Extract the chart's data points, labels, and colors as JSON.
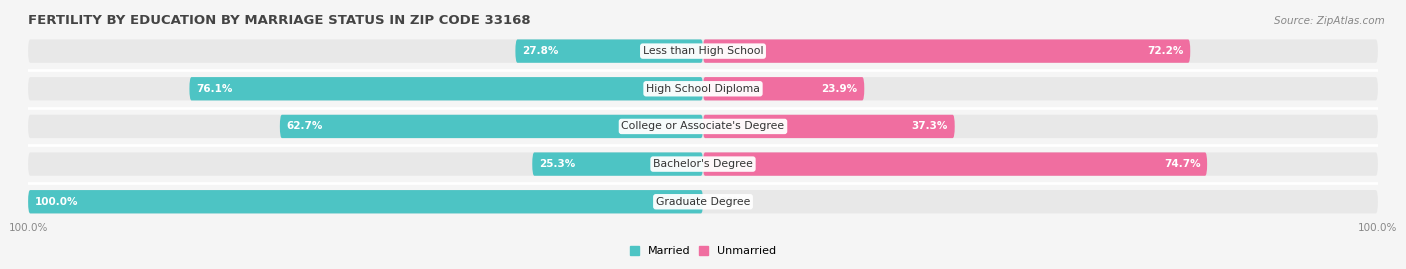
{
  "title": "FERTILITY BY EDUCATION BY MARRIAGE STATUS IN ZIP CODE 33168",
  "source": "Source: ZipAtlas.com",
  "categories": [
    "Less than High School",
    "High School Diploma",
    "College or Associate's Degree",
    "Bachelor's Degree",
    "Graduate Degree"
  ],
  "married": [
    27.8,
    76.1,
    62.7,
    25.3,
    100.0
  ],
  "unmarried": [
    72.2,
    23.9,
    37.3,
    74.7,
    0.0
  ],
  "married_color": "#4DC4C4",
  "unmarried_color": "#F06EA0",
  "married_color_light": "#A8DEDE",
  "unmarried_color_light": "#F9B8D3",
  "bg_color": "#f5f5f5",
  "track_color": "#e8e8e8",
  "bar_height": 0.62,
  "title_fontsize": 9.5,
  "label_fontsize": 7.8,
  "tick_fontsize": 7.5,
  "legend_fontsize": 8,
  "source_fontsize": 7.5,
  "value_label_fontsize": 7.5
}
